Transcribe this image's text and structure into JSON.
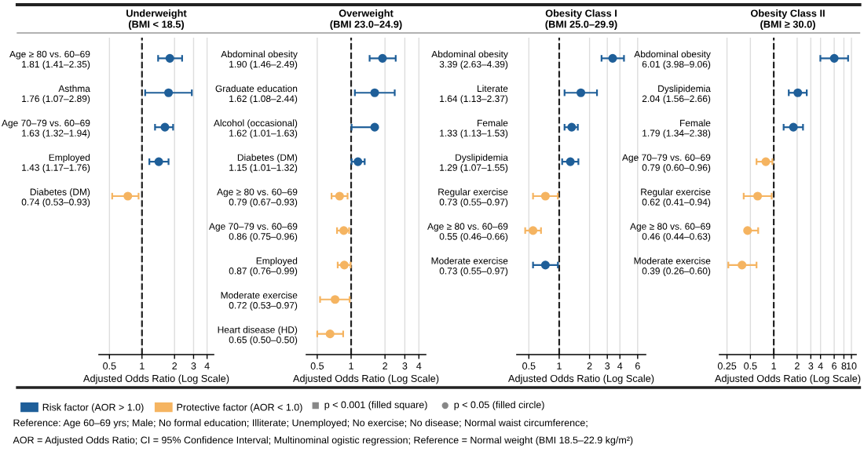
{
  "chart_data": [
    {
      "type": "scatter",
      "orientation": "horizontal",
      "title": "Underweight",
      "subtitle": "(BMI < 18.5)",
      "xlabel": "Adjusted Odds Ratio (Log Scale)",
      "log": "x",
      "grid": "x",
      "marker": "circle",
      "legend": "bottom",
      "categories": [
        "Age ≥ 80 vs. 60–69\n1.81 (1.41–2.35)",
        "Asthma\n1.76 (1.07–2.89)",
        "Age 70–79 vs. 60–69\n1.63 (1.32–1.94)",
        "Employed\n1.43 (1.17–1.76)",
        "Diabetes (DM)\n0.74 (0.53–0.93)",
        null,
        null,
        null,
        null
      ],
      "series": [
        {
          "name": "Risk factor (AOR > 1.0)",
          "color": "#1f5f99",
          "values": [
            1.81,
            1.76,
            1.63,
            1.43,
            null,
            null,
            null,
            null,
            null
          ],
          "errors": [
            [
              1.41,
              2.35
            ],
            [
              1.07,
              2.89
            ],
            [
              1.32,
              1.94
            ],
            [
              1.17,
              1.76
            ],
            null,
            null,
            null,
            null,
            null
          ]
        },
        {
          "name": "Protective factor (AOR < 1.0)",
          "color": "#f5b461",
          "values": [
            null,
            null,
            null,
            null,
            0.74,
            null,
            null,
            null,
            null
          ],
          "errors": [
            null,
            null,
            null,
            null,
            [
              0.53,
              0.93
            ],
            null,
            null,
            null,
            null
          ]
        }
      ],
      "xlim": [
        0.4,
        4.6
      ],
      "xticks": [
        0.5,
        1,
        2,
        3,
        4
      ],
      "ref_lines": [
        {
          "axis": "x",
          "value": 1,
          "color": "#222222",
          "line_style": "dashed"
        }
      ],
      "annotations": [
        "p < 0.001 (filled square)",
        "p < 0.05 (filled circle)",
        "Reference: Age 60–69 yrs; Male; No formal education; Illiterate; Unemployed; No exercise; No disease; Normal waist circumference;",
        "AOR = Adjusted Odds Ratio; CI = 95% Confidence Interval; Multinominal ogistic regression; Reference = Normal weight (BMI 18.5–22.9 kg/m²)"
      ]
    },
    {
      "type": "scatter",
      "orientation": "horizontal",
      "title": "Overweight",
      "subtitle": "(BMI 23.0–24.9)",
      "xlabel": "Adjusted Odds Ratio (Log Scale)",
      "log": "x",
      "grid": "x",
      "marker": "circle",
      "categories": [
        "Abdominal obesity\n1.90 (1.46–2.49)",
        "Graduate education\n1.62 (1.08–2.44)",
        "Alcohol (occasional)\n1.62 (1.01–1.63)",
        "Diabetes (DM)\n1.15 (1.01–1.32)",
        "Age ≥ 80 vs. 60–69\n0.79 (0.67–0.93)",
        "Age 70–79 vs. 60–69\n0.86 (0.75–0.96)",
        "Employed\n0.87 (0.76–0.99)",
        "Moderate exercise\n0.72 (0.53–0.97)",
        "Heart disease (HD)\n0.65 (0.50–0.50)"
      ],
      "series": [
        {
          "name": "Risk factor (AOR > 1.0)",
          "color": "#1f5f99",
          "values": [
            1.9,
            1.62,
            1.62,
            1.15,
            null,
            null,
            null,
            null,
            null
          ],
          "errors": [
            [
              1.46,
              2.49
            ],
            [
              1.08,
              2.44
            ],
            [
              1.01,
              1.63
            ],
            [
              1.01,
              1.32
            ],
            null,
            null,
            null,
            null,
            null
          ]
        },
        {
          "name": "Protective factor (AOR < 1.0)",
          "color": "#f5b461",
          "values": [
            null,
            null,
            null,
            null,
            0.79,
            0.86,
            0.87,
            0.72,
            0.65
          ],
          "errors": [
            null,
            null,
            null,
            null,
            [
              0.67,
              0.93
            ],
            [
              0.75,
              0.96
            ],
            [
              0.76,
              0.99
            ],
            [
              0.53,
              0.97
            ],
            [
              0.5,
              0.85
            ]
          ]
        }
      ],
      "xlim": [
        0.4,
        4.6
      ],
      "xticks": [
        0.5,
        1,
        2,
        3,
        4
      ],
      "ref_lines": [
        {
          "axis": "x",
          "value": 1,
          "color": "#222222",
          "line_style": "dashed"
        }
      ]
    },
    {
      "type": "scatter",
      "orientation": "horizontal",
      "title": "Obesity Class I",
      "subtitle": "(BMI 25.0–29.9)",
      "xlabel": "Adjusted Odds Ratio (Log Scale)",
      "log": "x",
      "grid": "x",
      "marker": "circle",
      "categories": [
        "Abdominal obesity\n3.39 (2.63–4.39)",
        "Literate\n1.64 (1.13–2.37)",
        "Female\n1.33 (1.13–1.53)",
        "Dyslipidemia\n1.29 (1.07–1.55)",
        "Regular exercise\n0.73 (0.55–0.97)",
        "Age ≥ 80 vs. 60–69\n0.55 (0.46–0.66)",
        "Moderate exercise\n0.73 (0.55–0.97)",
        null,
        null
      ],
      "series": [
        {
          "name": "Risk factor (AOR > 1.0)",
          "color": "#1f5f99",
          "values": [
            3.39,
            1.64,
            1.33,
            1.29,
            null,
            null,
            0.73,
            null,
            null
          ],
          "errors": [
            [
              2.63,
              4.39
            ],
            [
              1.13,
              2.37
            ],
            [
              1.13,
              1.53
            ],
            [
              1.07,
              1.55
            ],
            null,
            null,
            [
              0.55,
              0.97
            ],
            null,
            null
          ]
        },
        {
          "name": "Protective factor (AOR < 1.0)",
          "color": "#f5b461",
          "values": [
            null,
            null,
            null,
            null,
            0.73,
            0.55,
            null,
            null,
            null
          ],
          "errors": [
            null,
            null,
            null,
            null,
            [
              0.55,
              0.97
            ],
            [
              0.46,
              0.66
            ],
            null,
            null,
            null
          ]
        }
      ],
      "xlim": [
        0.38,
        7.2
      ],
      "xticks": [
        0.5,
        1,
        2,
        3,
        4,
        6
      ],
      "ref_lines": [
        {
          "axis": "x",
          "value": 1,
          "color": "#222222",
          "line_style": "dashed"
        }
      ]
    },
    {
      "type": "scatter",
      "orientation": "horizontal",
      "title": "Obesity Class II",
      "subtitle": "(BMI ≥ 30.0)",
      "xlabel": "Adjusted Odds Ratio (Log Scale)",
      "log": "x",
      "grid": "x",
      "marker": "circle",
      "categories": [
        "Abdominal obesity\n6.01 (3.98–9.06)",
        "Dyslipidemia\n2.04 (1.56–2.66)",
        "Female\n1.79 (1.34–2.38)",
        "Age 70–79 vs. 60–69\n0.79 (0.60–0.96)",
        "Regular exercise\n0.62 (0.41–0.94)",
        "Age ≥ 80 vs. 60–69\n0.46 (0.44–0.63)",
        "Moderate exercise\n0.39 (0.26–0.60)",
        null,
        null
      ],
      "series": [
        {
          "name": "Risk factor (AOR > 1.0)",
          "color": "#1f5f99",
          "values": [
            6.01,
            2.04,
            1.79,
            null,
            null,
            null,
            null,
            null,
            null
          ],
          "errors": [
            [
              3.98,
              9.06
            ],
            [
              1.56,
              2.66
            ],
            [
              1.34,
              2.38
            ],
            null,
            null,
            null,
            null,
            null,
            null
          ]
        },
        {
          "name": "Protective factor (AOR < 1.0)",
          "color": "#f5b461",
          "values": [
            null,
            null,
            null,
            0.79,
            0.62,
            0.46,
            0.39,
            null,
            null
          ],
          "errors": [
            null,
            null,
            null,
            [
              0.6,
              0.96
            ],
            [
              0.41,
              0.94
            ],
            [
              0.44,
              0.63
            ],
            [
              0.26,
              0.6
            ],
            null,
            null
          ]
        }
      ],
      "xlim": [
        0.2,
        11.5
      ],
      "xticks": [
        0.25,
        0.5,
        1,
        2,
        3,
        4,
        6,
        8,
        10
      ],
      "ref_lines": [
        {
          "axis": "x",
          "value": 1,
          "color": "#222222",
          "line_style": "dashed"
        }
      ]
    }
  ]
}
